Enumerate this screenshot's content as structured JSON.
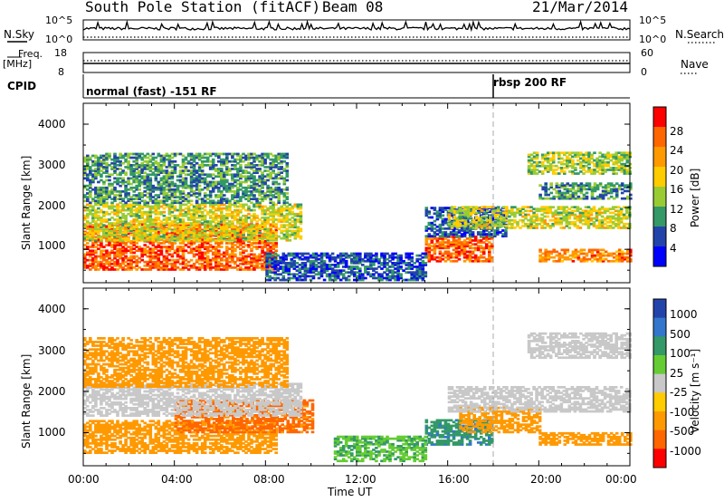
{
  "header": {
    "station": "South Pole Station (fitACF)",
    "beam": "Beam 08",
    "date": "21/Mar/2014"
  },
  "top_panels": {
    "nsky_label": "N.Sky",
    "nsky_ticks": [
      "10^5",
      "10^0"
    ],
    "nsearch_label": "N.Search",
    "nsearch_ticks": [
      "10^5",
      "10^0"
    ],
    "freq_label_1": "Freq.",
    "freq_label_2": "[MHz]",
    "freq_ticks": [
      "18",
      "8"
    ],
    "nave_label": "Nave",
    "nave_ticks": [
      "60",
      "0"
    ],
    "cpid_label": "CPID",
    "cpid_segments": [
      {
        "text": "normal (fast) -151 RF",
        "start_hour": 0
      },
      {
        "text": "rbsp 200 RF",
        "start_hour": 18
      }
    ]
  },
  "power_colorbar": {
    "label": "Power [dB]",
    "ticks": [
      "28",
      "24",
      "20",
      "16",
      "12",
      "8",
      "4"
    ],
    "colors": [
      "#ff0000",
      "#ff6600",
      "#ff9900",
      "#ffcc00",
      "#99cc33",
      "#339966",
      "#2244aa",
      "#0000ff"
    ]
  },
  "velocity_colorbar": {
    "label": "Velocity [m s⁻¹]",
    "ticks": [
      "1000",
      "500",
      "100",
      "25",
      "-25",
      "-100",
      "-500",
      "-1000"
    ],
    "colors": [
      "#2244aa",
      "#3377cc",
      "#339966",
      "#66cc33",
      "#c8c8c8",
      "#ffcc00",
      "#ff9900",
      "#ff6600",
      "#ff0000"
    ]
  },
  "chart_data": [
    {
      "type": "heatmap",
      "quantity": "Power",
      "xlabel": "",
      "ylabel": "Slant Range [km]",
      "xlim": [
        0,
        24
      ],
      "ylim": [
        200,
        4500
      ],
      "yticks": [
        1000,
        2000,
        3000,
        4000
      ],
      "x_ticklabels": [
        "00:00",
        "04:00",
        "08:00",
        "12:00",
        "16:00",
        "20:00",
        "00:00"
      ],
      "echo_bands": [
        {
          "t_start": 0.0,
          "t_end": 8.5,
          "r_start": 500,
          "r_end": 1600,
          "dB": 26
        },
        {
          "t_start": 0.0,
          "t_end": 9.5,
          "r_start": 1200,
          "r_end": 2100,
          "dB": 16
        },
        {
          "t_start": 0.0,
          "t_end": 9.0,
          "r_start": 2100,
          "r_end": 3300,
          "dB": 10
        },
        {
          "t_start": 15.0,
          "t_end": 18.0,
          "r_start": 700,
          "r_end": 1300,
          "dB": 26
        },
        {
          "t_start": 15.0,
          "t_end": 18.5,
          "r_start": 1300,
          "r_end": 2000,
          "dB": 6
        },
        {
          "t_start": 16.0,
          "t_end": 24.0,
          "r_start": 1500,
          "r_end": 2000,
          "dB": 16
        },
        {
          "t_start": 20.0,
          "t_end": 24.0,
          "r_start": 700,
          "r_end": 1000,
          "dB": 24
        },
        {
          "t_start": 19.5,
          "t_end": 24.0,
          "r_start": 2800,
          "r_end": 3300,
          "dB": 14
        },
        {
          "t_start": 20.0,
          "t_end": 24.0,
          "r_start": 2200,
          "r_end": 2600,
          "dB": 10
        },
        {
          "t_start": 8.0,
          "t_end": 15.0,
          "r_start": 250,
          "r_end": 900,
          "dB": 6
        }
      ]
    },
    {
      "type": "heatmap",
      "quantity": "Velocity",
      "xlabel": "Time UT",
      "ylabel": "Slant Range [km]",
      "xlim": [
        0,
        24
      ],
      "ylim": [
        200,
        4500
      ],
      "yticks": [
        1000,
        2000,
        3000,
        4000
      ],
      "x_ticklabels": [
        "00:00",
        "04:00",
        "08:00",
        "12:00",
        "16:00",
        "20:00",
        "00:00"
      ],
      "echo_bands": [
        {
          "t_start": 0.0,
          "t_end": 8.5,
          "r_start": 500,
          "r_end": 1300,
          "v": -300
        },
        {
          "t_start": 4.0,
          "t_end": 10.0,
          "r_start": 1000,
          "r_end": 1800,
          "v": -700
        },
        {
          "t_start": 0.0,
          "t_end": 9.5,
          "r_start": 1400,
          "r_end": 2200,
          "v": 0
        },
        {
          "t_start": 0.0,
          "t_end": 9.0,
          "r_start": 2100,
          "r_end": 3300,
          "v": -300
        },
        {
          "t_start": 15.0,
          "t_end": 18.0,
          "r_start": 700,
          "r_end": 1300,
          "v": 400
        },
        {
          "t_start": 16.5,
          "t_end": 20.0,
          "r_start": 1000,
          "r_end": 1600,
          "v": -300
        },
        {
          "t_start": 16.0,
          "t_end": 24.0,
          "r_start": 1500,
          "r_end": 2100,
          "v": 0
        },
        {
          "t_start": 20.0,
          "t_end": 24.0,
          "r_start": 700,
          "r_end": 1000,
          "v": -300
        },
        {
          "t_start": 19.5,
          "t_end": 24.0,
          "r_start": 2800,
          "r_end": 3400,
          "v": 0
        },
        {
          "t_start": 11.0,
          "t_end": 15.0,
          "r_start": 300,
          "r_end": 900,
          "v": 80
        }
      ]
    }
  ]
}
